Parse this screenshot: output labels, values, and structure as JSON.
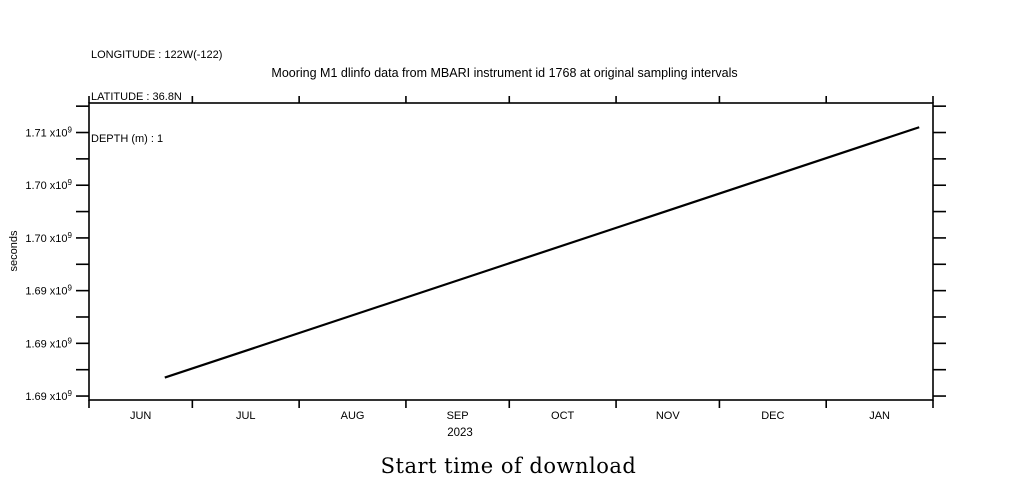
{
  "colors": {
    "background": "#ffffff",
    "foreground": "#000000"
  },
  "header": {
    "longitude": "LONGITUDE : 122W(-122)",
    "latitude": "LATITUDE : 36.8N",
    "depth": "DEPTH (m) : 1"
  },
  "chart_data": {
    "type": "line",
    "title": "Mooring M1 dlinfo data from MBARI instrument id 1768 at original sampling intervals",
    "ylabel": "seconds",
    "xlabel": "2023",
    "caption": "Start time of download",
    "grid": false,
    "legend": false,
    "x_range": [
      "2023-06-01",
      "2024-02-01"
    ],
    "y_range": [
      1685700000,
      1708240000
    ],
    "x_tick_dates": [
      "2023-06-01",
      "2023-07-01",
      "2023-08-01",
      "2023-09-01",
      "2023-10-01",
      "2023-11-01",
      "2023-12-01",
      "2024-01-01",
      "2024-02-01"
    ],
    "x_month_labels": [
      "JUN",
      "JUL",
      "AUG",
      "SEP",
      "OCT",
      "NOV",
      "DEC",
      "JAN"
    ],
    "y_major_ticks": [
      {
        "value": 1686000000,
        "label": "1.69 x10",
        "exp": "9"
      },
      {
        "value": 1690000000,
        "label": "1.69 x10",
        "exp": "9"
      },
      {
        "value": 1694000000,
        "label": "1.69 x10",
        "exp": "9"
      },
      {
        "value": 1698000000,
        "label": "1.70 x10",
        "exp": "9"
      },
      {
        "value": 1702000000,
        "label": "1.70 x10",
        "exp": "9"
      },
      {
        "value": 1706000000,
        "label": "1.71 x10",
        "exp": "9"
      }
    ],
    "y_minor_step": 2000000,
    "series": [
      {
        "name": "start time of download",
        "color": "#000000",
        "points": [
          {
            "x": "2023-06-23",
            "y": 1687400000
          },
          {
            "x": "2024-01-28",
            "y": 1706400000
          }
        ]
      }
    ]
  }
}
